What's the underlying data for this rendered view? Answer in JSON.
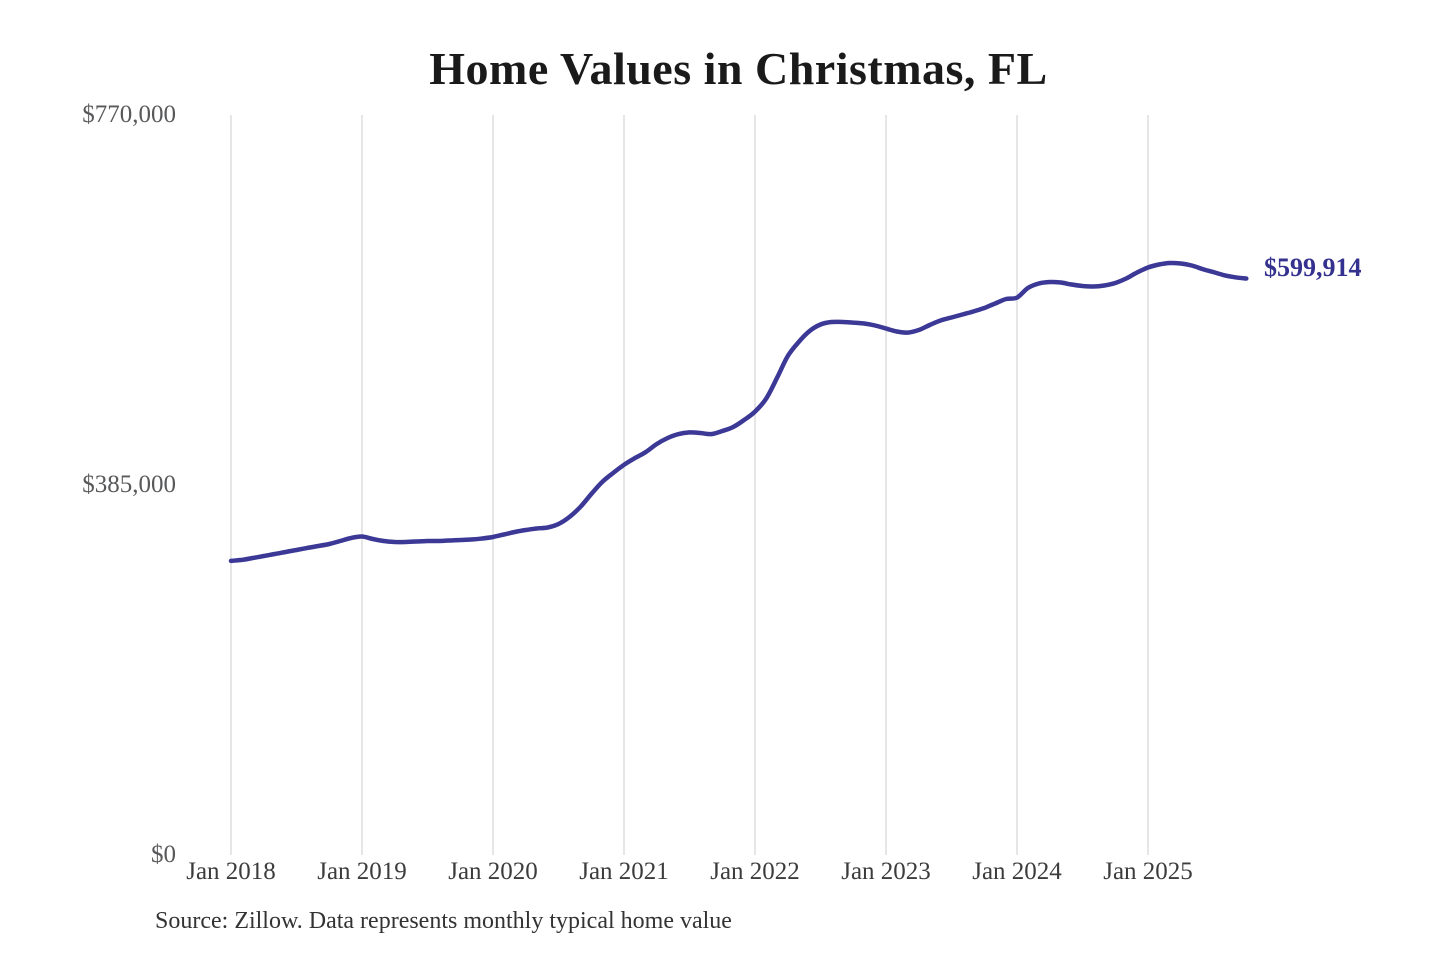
{
  "page": {
    "title": "Home Values in Christmas, FL",
    "source_note": "Source: Zillow. Data represents monthly typical home value"
  },
  "chart_data": {
    "type": "line",
    "title": "Home Values in Christmas, FL",
    "series_name": "Monthly typical home value",
    "unit": "USD",
    "legend": "none",
    "grid": "vertical-only",
    "line_color": "#3b3896",
    "gridline_color": "#cccccc",
    "end_label": "$599,914",
    "latest_value": 599914,
    "ylim": [
      0,
      770000
    ],
    "y_tick_values": [
      770000,
      385000,
      0
    ],
    "y_tick_labels": [
      "$770,000",
      "$385,000",
      "$0"
    ],
    "x_tick_labels": [
      "Jan 2018",
      "Jan 2019",
      "Jan 2020",
      "Jan 2021",
      "Jan 2022",
      "Jan 2023",
      "Jan 2024",
      "Jan 2025"
    ],
    "x": [
      "2018-01",
      "2018-02",
      "2018-03",
      "2018-04",
      "2018-05",
      "2018-06",
      "2018-07",
      "2018-08",
      "2018-09",
      "2018-10",
      "2018-11",
      "2018-12",
      "2019-01",
      "2019-02",
      "2019-03",
      "2019-04",
      "2019-05",
      "2019-06",
      "2019-07",
      "2019-08",
      "2019-09",
      "2019-10",
      "2019-11",
      "2019-12",
      "2020-01",
      "2020-02",
      "2020-03",
      "2020-04",
      "2020-05",
      "2020-06",
      "2020-07",
      "2020-08",
      "2020-09",
      "2020-10",
      "2020-11",
      "2020-12",
      "2021-01",
      "2021-02",
      "2021-03",
      "2021-04",
      "2021-05",
      "2021-06",
      "2021-07",
      "2021-08",
      "2021-09",
      "2021-10",
      "2021-11",
      "2021-12",
      "2022-01",
      "2022-02",
      "2022-03",
      "2022-04",
      "2022-05",
      "2022-06",
      "2022-07",
      "2022-08",
      "2022-09",
      "2022-10",
      "2022-11",
      "2022-12",
      "2023-01",
      "2023-02",
      "2023-03",
      "2023-04",
      "2023-05",
      "2023-06",
      "2023-07",
      "2023-08",
      "2023-09",
      "2023-10",
      "2023-11",
      "2023-12",
      "2024-01",
      "2024-02",
      "2024-03",
      "2024-04",
      "2024-05",
      "2024-06",
      "2024-07",
      "2024-08",
      "2024-09",
      "2024-10",
      "2024-11",
      "2024-12",
      "2025-01",
      "2025-02",
      "2025-03",
      "2025-04",
      "2025-05",
      "2025-06",
      "2025-07",
      "2025-08",
      "2025-09",
      "2025-10"
    ],
    "values": [
      306000,
      307100,
      309000,
      311100,
      313200,
      315300,
      317400,
      319500,
      321500,
      323600,
      326700,
      329900,
      331400,
      328800,
      326700,
      325700,
      325700,
      326200,
      326700,
      326700,
      327200,
      327800,
      328300,
      329300,
      330900,
      333500,
      336100,
      338200,
      339700,
      340800,
      344400,
      351700,
      362100,
      375600,
      388100,
      397500,
      406000,
      413000,
      419300,
      427700,
      433900,
      438000,
      439700,
      439100,
      438000,
      441200,
      445300,
      452600,
      461400,
      474500,
      496000,
      519200,
      533800,
      545200,
      552000,
      554600,
      554600,
      554000,
      553000,
      551000,
      547800,
      544700,
      543600,
      546300,
      551500,
      556200,
      559300,
      562400,
      565500,
      569200,
      573900,
      578500,
      580000,
      590000,
      594700,
      596200,
      595700,
      593600,
      592100,
      591500,
      592600,
      595200,
      599900,
      606100,
      611300,
      614400,
      616000,
      615500,
      613400,
      609700,
      606500,
      603200,
      601100,
      599914
    ],
    "source": "Source: Zillow. Data represents monthly typical home value"
  }
}
